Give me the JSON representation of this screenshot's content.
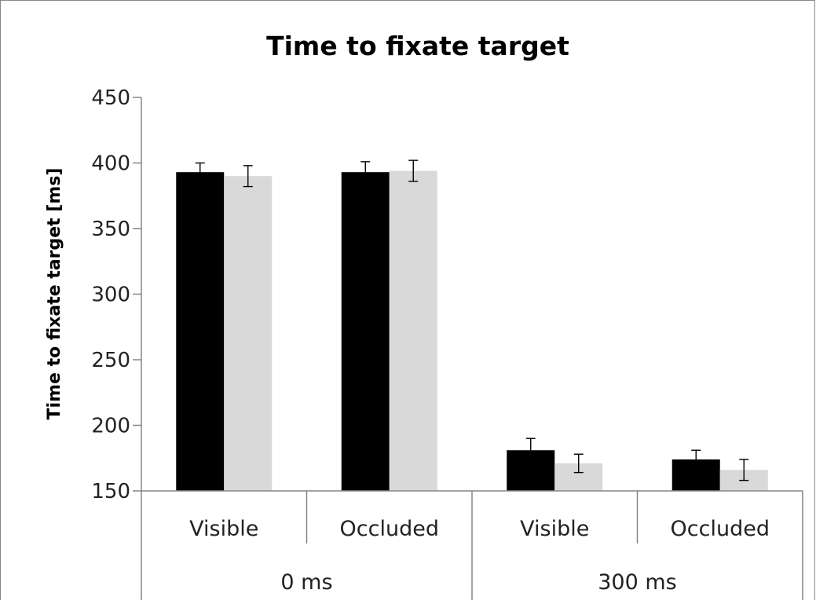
{
  "chart_data": {
    "type": "bar",
    "title": "Time to fixate target",
    "xlabel": "",
    "ylabel": "Time to fixate target [ms]",
    "ylim": [
      150,
      450
    ],
    "yticks": [
      150,
      200,
      250,
      300,
      350,
      400,
      450
    ],
    "grid": false,
    "legend": "none",
    "groups": [
      {
        "label": "0 ms",
        "categories": [
          "Visible",
          "Occluded"
        ]
      },
      {
        "label": "300 ms",
        "categories": [
          "Visible",
          "Occluded"
        ]
      }
    ],
    "categories": [
      "Visible",
      "Occluded",
      "Visible",
      "Occluded"
    ],
    "series": [
      {
        "color": "#000000",
        "values": [
          393,
          393,
          181,
          174
        ],
        "errors": [
          7,
          8,
          9,
          7
        ]
      },
      {
        "color": "#d9d9d9",
        "values": [
          390,
          394,
          171,
          166
        ],
        "errors": [
          8,
          8,
          7,
          8
        ]
      }
    ]
  }
}
